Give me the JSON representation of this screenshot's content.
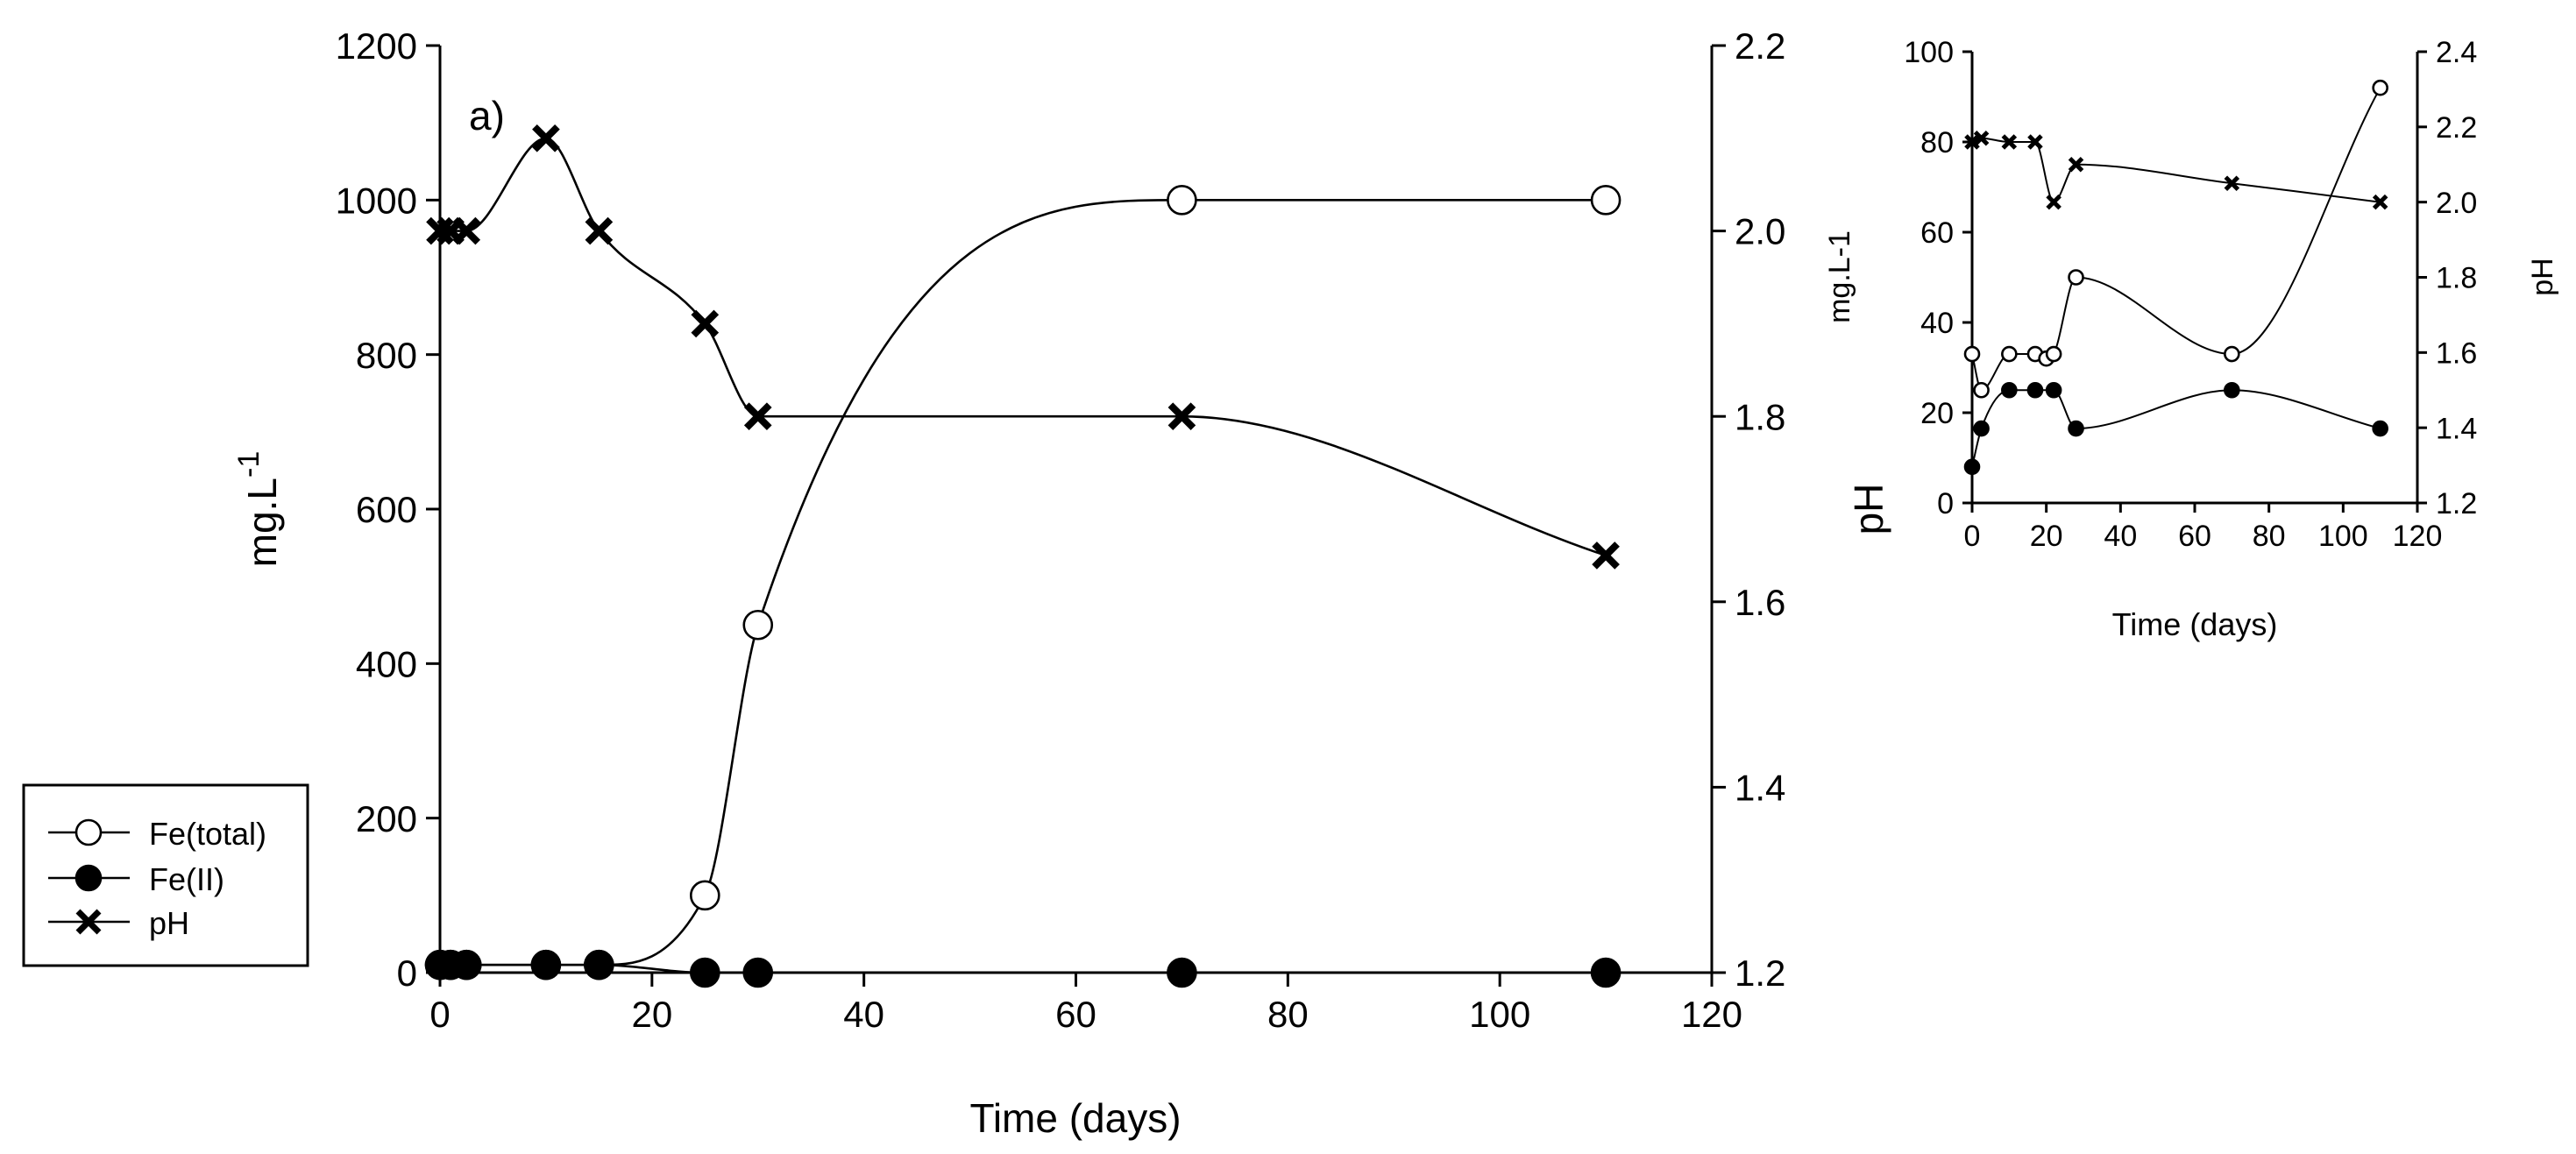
{
  "chart_data": [
    {
      "type": "line",
      "panel_label": "a)",
      "xlabel": "Time (days)",
      "ylabel_left": "mg.L",
      "ylabel_left_superscript": "-1",
      "ylabel_right": "pH",
      "xlim": [
        0,
        120
      ],
      "ylim_left": [
        0,
        1200
      ],
      "ylim_right": [
        1.2,
        2.2
      ],
      "x_ticks": [
        "0",
        "20",
        "40",
        "60",
        "80",
        "100",
        "120"
      ],
      "y_left_ticks": [
        "0",
        "200",
        "400",
        "600",
        "800",
        "1000",
        "1200"
      ],
      "y_right_ticks": [
        "1.2",
        "1.4",
        "1.6",
        "1.8",
        "2.0",
        "2.2"
      ],
      "grid": false,
      "legend_position": "bottom-left, outside plot",
      "series": [
        {
          "name": "Fe(total)",
          "marker": "open-circle",
          "axis": "left",
          "x": [
            0,
            1,
            2.5,
            10,
            15,
            25,
            30,
            70,
            110
          ],
          "y": [
            10,
            10,
            10,
            10,
            10,
            100,
            450,
            1000,
            1000
          ]
        },
        {
          "name": "Fe(II)",
          "marker": "filled-circle",
          "axis": "left",
          "x": [
            0,
            1,
            2.5,
            10,
            15,
            25,
            30,
            70,
            110
          ],
          "y": [
            10,
            10,
            10,
            10,
            10,
            0,
            0,
            0,
            0
          ]
        },
        {
          "name": "pH",
          "marker": "x",
          "axis": "right",
          "x": [
            0,
            1,
            2.5,
            10,
            15,
            25,
            30,
            70,
            110
          ],
          "y": [
            2.0,
            2.0,
            2.0,
            2.1,
            2.0,
            1.9,
            1.8,
            1.8,
            1.65
          ]
        }
      ]
    },
    {
      "type": "line",
      "xlabel": "Time (days)",
      "ylabel_left": "mg.L-1",
      "ylabel_right": "pH",
      "xlim": [
        0,
        120
      ],
      "ylim_left": [
        0,
        100
      ],
      "ylim_right": [
        1.2,
        2.4
      ],
      "x_ticks": [
        "0",
        "20",
        "40",
        "60",
        "80",
        "100",
        "120"
      ],
      "y_left_ticks": [
        "0",
        "20",
        "40",
        "60",
        "80",
        "100"
      ],
      "y_right_ticks": [
        "1.2",
        "1.4",
        "1.6",
        "1.8",
        "2.0",
        "2.2",
        "2.4"
      ],
      "grid": false,
      "series": [
        {
          "name": "Fe(total)",
          "marker": "open-circle",
          "axis": "left",
          "x": [
            0,
            2.5,
            10,
            17,
            20,
            22,
            28,
            70,
            110
          ],
          "y": [
            33,
            25,
            33,
            33,
            32,
            33,
            50,
            33,
            92
          ]
        },
        {
          "name": "Fe(II)",
          "marker": "filled-circle",
          "axis": "left",
          "x": [
            0,
            2.5,
            10,
            17,
            22,
            28,
            70,
            110
          ],
          "y": [
            8,
            16.5,
            25,
            25,
            25,
            16.5,
            25,
            16.5
          ]
        },
        {
          "name": "pH",
          "marker": "x",
          "axis": "right",
          "x": [
            0,
            2.5,
            10,
            17,
            22,
            28,
            70,
            110
          ],
          "y": [
            2.16,
            2.17,
            2.16,
            2.16,
            2.0,
            2.1,
            2.05,
            2.0
          ]
        }
      ]
    }
  ],
  "legend": {
    "items": [
      {
        "label": "Fe(total)",
        "marker": "open-circle"
      },
      {
        "label": "Fe(II)",
        "marker": "filled-circle"
      },
      {
        "label": "pH",
        "marker": "x"
      }
    ]
  }
}
